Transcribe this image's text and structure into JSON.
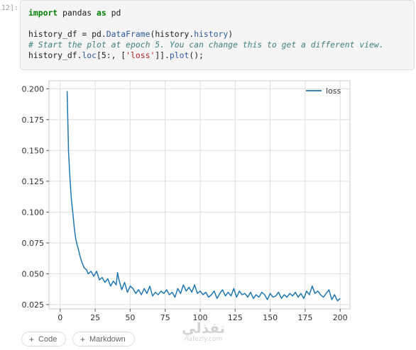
{
  "cell": {
    "prompt": "12]:",
    "code": {
      "line1": {
        "kw1": "import",
        "mid": " pandas ",
        "kw2": "as",
        "tail": " pd"
      },
      "line3": {
        "a": "history_df = pd.",
        "b": "DataFrame",
        "c": "(history.",
        "d": "history",
        "e": ")"
      },
      "line4": "# Start the plot at epoch 5. You can change this to get a different view.",
      "line5": {
        "a": "history_df.",
        "b": "loc",
        "c": "[5:, [",
        "d": "'loss'",
        "e": "]].",
        "f": "plot",
        "g": "();"
      }
    }
  },
  "chart_data": {
    "type": "line",
    "title": "",
    "xlabel": "",
    "ylabel": "",
    "xlim": [
      -8,
      207
    ],
    "ylim": [
      0.0215,
      0.2065
    ],
    "xticks": [
      0,
      25,
      50,
      75,
      100,
      125,
      150,
      175,
      200
    ],
    "yticks": [
      0.025,
      0.05,
      0.075,
      0.1,
      0.125,
      0.15,
      0.175,
      0.2
    ],
    "ytick_labels": [
      "0.025",
      "0.050",
      "0.075",
      "0.100",
      "0.125",
      "0.150",
      "0.175",
      "0.200"
    ],
    "grid": true,
    "legend_position": "top-right",
    "line_color": "#1f77b4",
    "series": [
      {
        "name": "loss",
        "x": [
          5,
          6,
          7,
          8,
          9,
          10,
          11,
          12,
          13,
          14,
          15,
          16,
          17,
          18,
          19,
          20,
          22,
          24,
          26,
          28,
          30,
          32,
          34,
          36,
          38,
          40,
          41,
          42,
          44,
          46,
          48,
          50,
          52,
          54,
          56,
          58,
          60,
          62,
          64,
          66,
          68,
          70,
          72,
          74,
          76,
          78,
          80,
          82,
          84,
          86,
          88,
          90,
          92,
          94,
          96,
          98,
          100,
          102,
          104,
          106,
          108,
          110,
          112,
          114,
          116,
          118,
          120,
          122,
          124,
          126,
          128,
          130,
          132,
          134,
          136,
          138,
          140,
          142,
          144,
          146,
          148,
          150,
          152,
          154,
          156,
          158,
          160,
          162,
          164,
          166,
          168,
          170,
          172,
          174,
          176,
          178,
          180,
          182,
          184,
          186,
          188,
          190,
          192,
          194,
          196,
          198,
          200
        ],
        "values": [
          0.198,
          0.148,
          0.127,
          0.11,
          0.1,
          0.088,
          0.079,
          0.074,
          0.07,
          0.065,
          0.061,
          0.058,
          0.055,
          0.054,
          0.053,
          0.05,
          0.052,
          0.048,
          0.052,
          0.045,
          0.047,
          0.043,
          0.046,
          0.04,
          0.044,
          0.041,
          0.051,
          0.045,
          0.037,
          0.043,
          0.035,
          0.04,
          0.038,
          0.034,
          0.037,
          0.033,
          0.038,
          0.034,
          0.04,
          0.032,
          0.035,
          0.033,
          0.036,
          0.034,
          0.037,
          0.033,
          0.035,
          0.031,
          0.038,
          0.034,
          0.041,
          0.036,
          0.039,
          0.035,
          0.041,
          0.034,
          0.036,
          0.033,
          0.035,
          0.031,
          0.033,
          0.036,
          0.03,
          0.034,
          0.037,
          0.032,
          0.035,
          0.032,
          0.038,
          0.031,
          0.036,
          0.033,
          0.034,
          0.031,
          0.035,
          0.03,
          0.033,
          0.031,
          0.035,
          0.033,
          0.029,
          0.034,
          0.031,
          0.032,
          0.035,
          0.03,
          0.033,
          0.031,
          0.034,
          0.032,
          0.035,
          0.031,
          0.034,
          0.03,
          0.036,
          0.033,
          0.04,
          0.034,
          0.036,
          0.033,
          0.031,
          0.034,
          0.037,
          0.029,
          0.033,
          0.028,
          0.03
        ]
      }
    ]
  },
  "toolbar": {
    "code_button": "Code",
    "markdown_button": "Markdown",
    "plus_glyph": "+"
  },
  "watermark": {
    "arabic": "نفذلي",
    "latin": "nafezly.com"
  }
}
